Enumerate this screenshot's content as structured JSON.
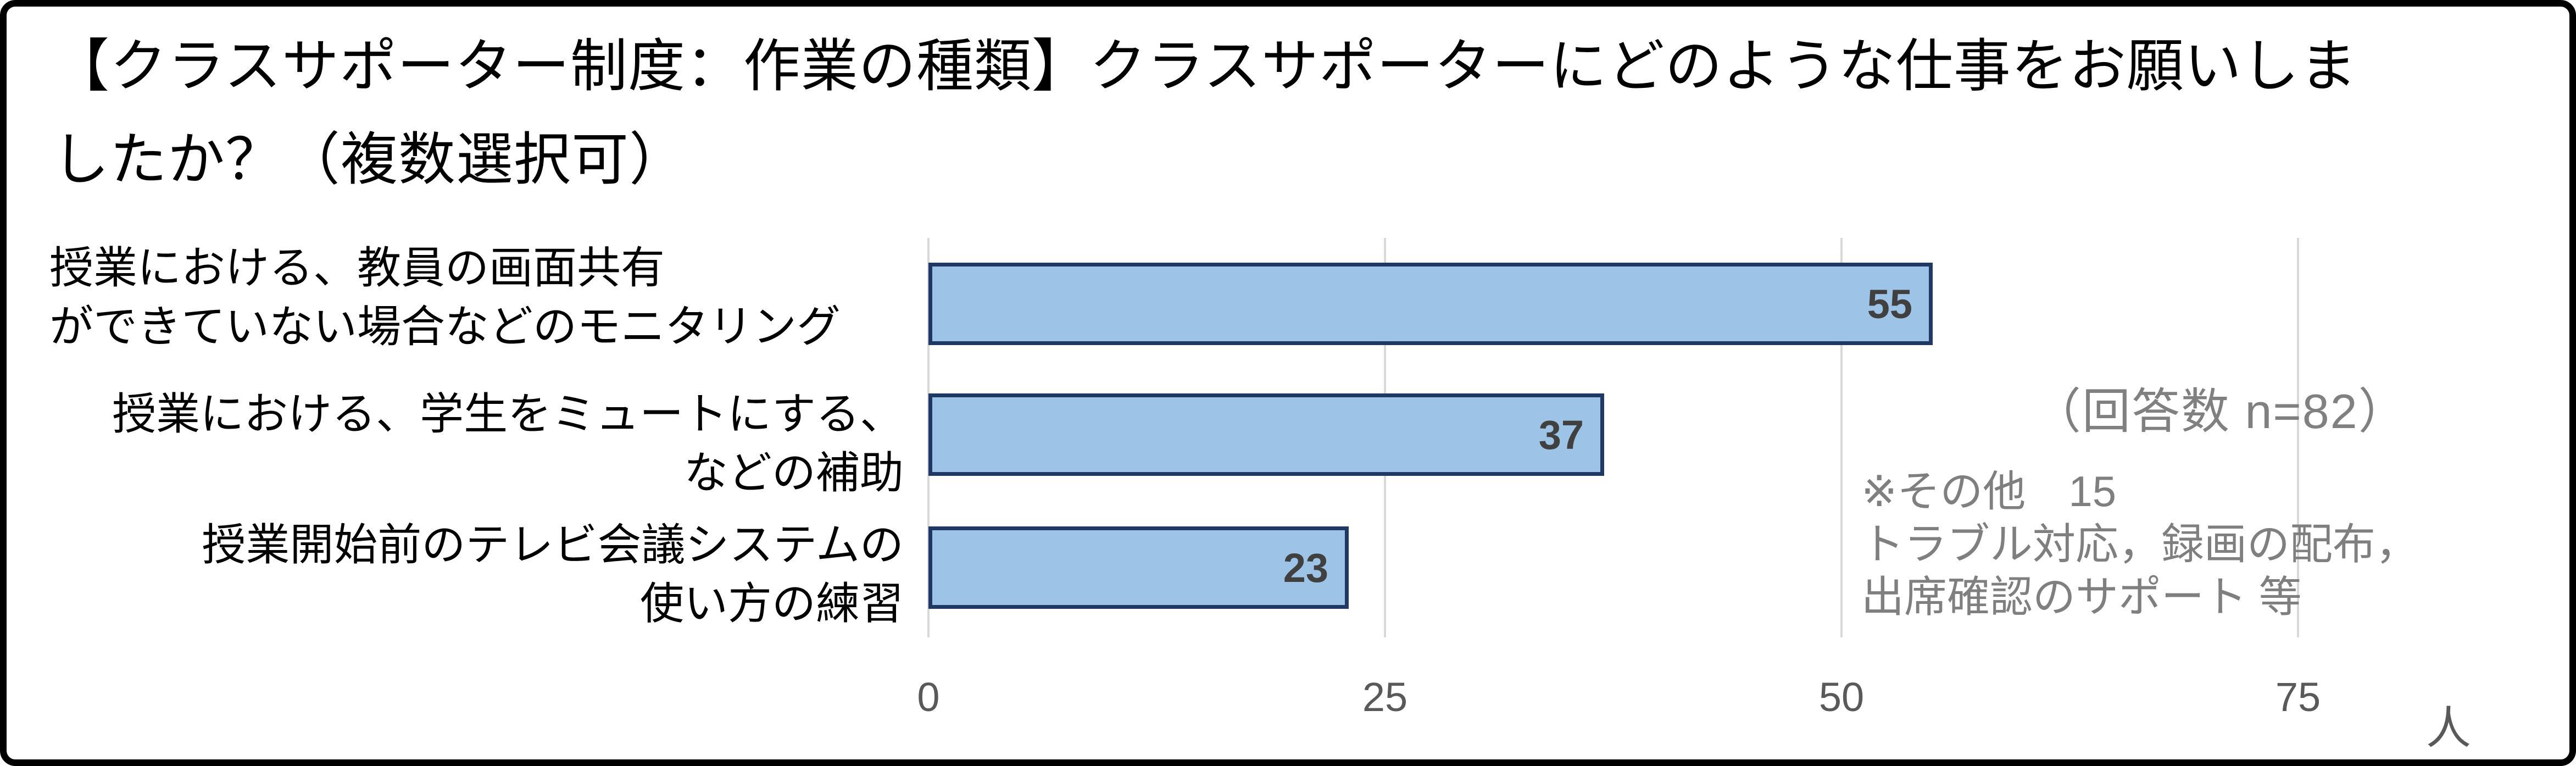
{
  "title": {
    "lines": [
      "【クラスサポーター制度：作業の種類】クラスサポーターにどのような仕事をお願いしま",
      "したか？（複数選択可）"
    ],
    "full": "【クラスサポーター制度：作業の種類】クラスサポーターにどのような仕事をお願いしましたか？（複数選択可）"
  },
  "chart_data": {
    "type": "bar",
    "orientation": "horizontal",
    "title": "【クラスサポーター制度：作業の種類】クラスサポーターにどのような仕事をお願いしましたか？（複数選択可）",
    "categories": [
      {
        "full": "授業における、教員の画面共有ができていない場合などのモニタリング",
        "lines": [
          "授業における、教員の画面共有",
          "ができていない場合などのモニタリング"
        ]
      },
      {
        "full": "授業における、学生をミュートにする、などの補助",
        "lines": [
          "授業における、学生をミュートにする、",
          "などの補助"
        ]
      },
      {
        "full": "授業開始前のテレビ会議システムの使い方の練習",
        "lines": [
          "授業開始前のテレビ会議システムの",
          "使い方の練習"
        ]
      }
    ],
    "values": [
      55,
      37,
      23
    ],
    "x_ticks": [
      "0",
      "25",
      "50",
      "75"
    ],
    "x_unit": "人",
    "xlim": [
      0,
      80
    ],
    "grid": "vertical-gridlines-on",
    "legend": "none",
    "annotations": {
      "response_count": "（回答数 n=82）",
      "other_note_lines": [
        "※その他　15",
        "トラブル対応，録画の配布，",
        "出席確認のサポート 等"
      ]
    }
  },
  "colors": {
    "background": "#FFFFFF",
    "frame_border": "#000000",
    "grid_line": "#D9D9D9",
    "bar_fill": "#9DC3E6",
    "bar_border": "#1F3864",
    "value_label": "#404040",
    "tick_label": "#595959",
    "annotation_gray": "#808080",
    "text": "#000000"
  }
}
